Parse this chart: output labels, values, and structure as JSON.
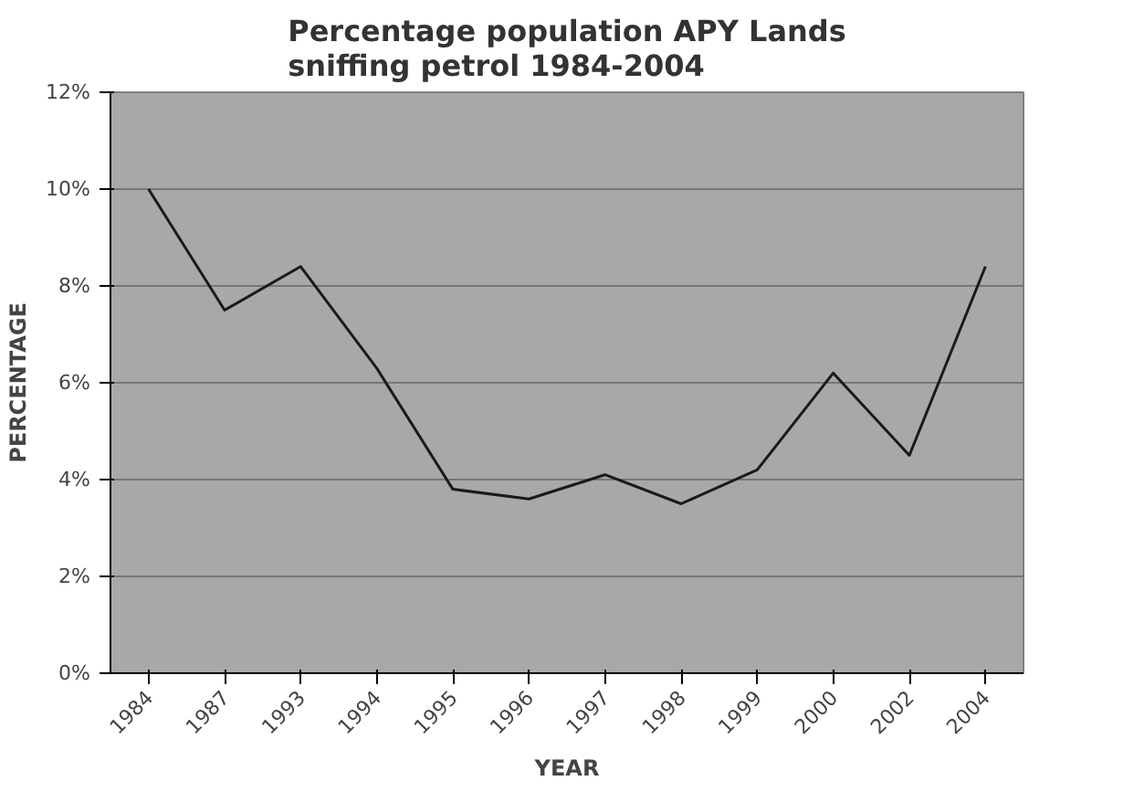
{
  "chart_data": {
    "type": "line",
    "title": "Percentage population APY Lands sniffing petrol 1984-2004",
    "xlabel": "YEAR",
    "ylabel": "PERCENTAGE",
    "categories": [
      "1984",
      "1987",
      "1993",
      "1994",
      "1995",
      "1996",
      "1997",
      "1998",
      "1999",
      "2000",
      "2002",
      "2004"
    ],
    "values": [
      10.0,
      7.5,
      8.4,
      6.3,
      3.8,
      3.6,
      4.1,
      3.5,
      4.2,
      6.2,
      4.5,
      8.4
    ],
    "color": "#1a1a1a",
    "ylim": [
      0,
      12
    ],
    "yticks": [
      {
        "value": 0,
        "label": "0%"
      },
      {
        "value": 2,
        "label": "2%"
      },
      {
        "value": 4,
        "label": "4%"
      },
      {
        "value": 6,
        "label": "6%"
      },
      {
        "value": 8,
        "label": "8%"
      },
      {
        "value": 10,
        "label": "10%"
      },
      {
        "value": 12,
        "label": "12%"
      }
    ],
    "grid": "y",
    "marker": "none",
    "line_style": "solid"
  }
}
